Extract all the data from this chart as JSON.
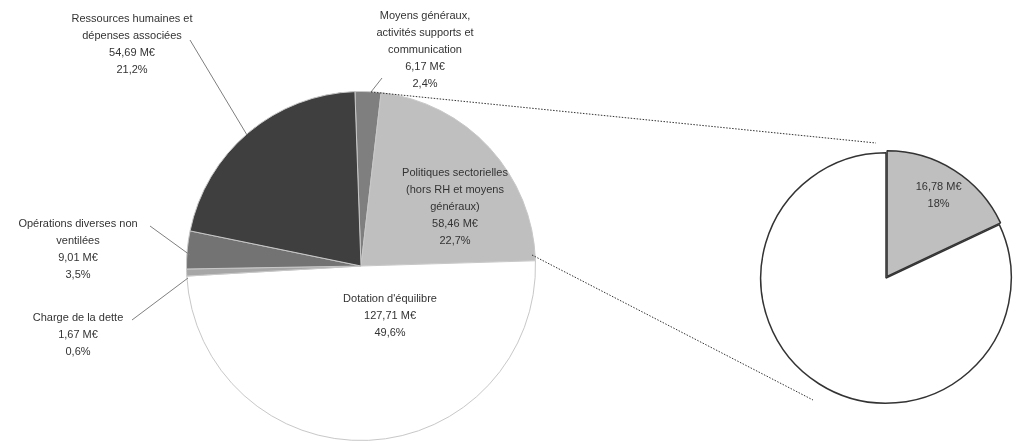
{
  "chart_data": [
    {
      "type": "pie",
      "categories": [
        "Moyens généraux, activités supports et communication",
        "Politiques sectorielles (hors RH et moyens généraux)",
        "Dotation d'équilibre",
        "Charge de la dette",
        "Opérations diverses non ventilées",
        "Ressources humaines et dépenses associées"
      ],
      "values": [
        6.17,
        58.46,
        127.71,
        1.67,
        9.01,
        54.69
      ],
      "colors": [
        "#7f7f7f",
        "#bfbfbf",
        "#ffffff",
        "#a6a6a6",
        "#737373",
        "#3f3f3f"
      ],
      "value_labels": [
        "6,17 M€\n2,4%",
        "58,46 M€\n22,7%",
        "127,71 M€\n49,6%",
        "1,67 M€\n0,6%",
        "9,01 M€\n3,5%",
        "54,69 M€\n21,2%"
      ]
    },
    {
      "type": "pie",
      "categories": [
        null,
        null
      ],
      "values": [
        18,
        82
      ],
      "colors": [
        "#bfbfbf",
        "#ffffff"
      ],
      "value_labels": [
        "16,78 M€\n18%",
        null
      ]
    }
  ]
}
